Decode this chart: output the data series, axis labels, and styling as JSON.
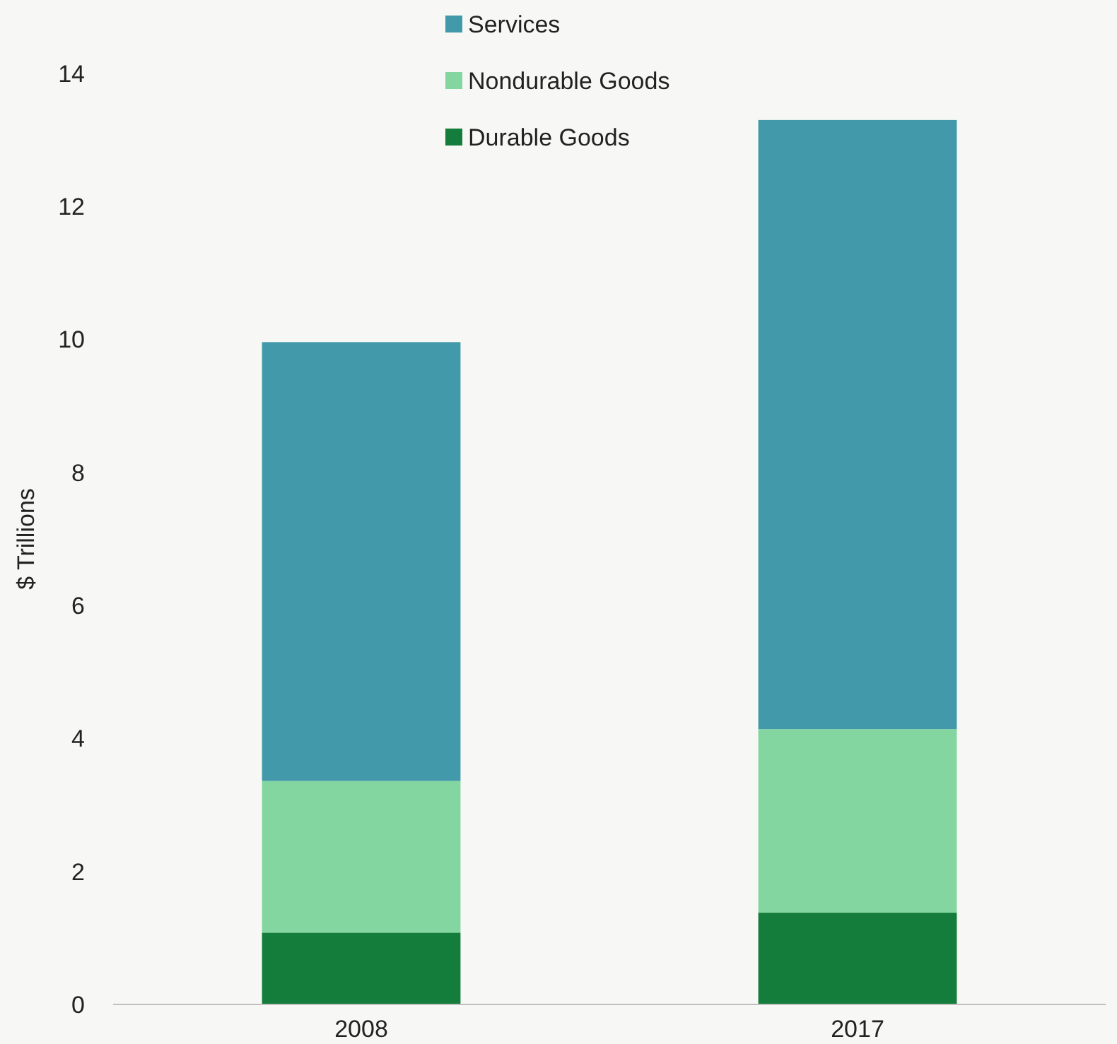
{
  "chart_data": {
    "type": "bar",
    "stacked": true,
    "ylabel": "$ Trillions",
    "categories": [
      "2008",
      "2017"
    ],
    "series": [
      {
        "name": "Durable Goods",
        "color": "#147d3c",
        "values": [
          1.08,
          1.38
        ]
      },
      {
        "name": "Nondurable Goods",
        "color": "#84d6a0",
        "values": [
          2.28,
          2.76
        ]
      },
      {
        "name": "Services",
        "color": "#4299aa",
        "values": [
          6.6,
          9.16
        ]
      }
    ],
    "ylim": [
      0,
      14
    ],
    "yticks": [
      0,
      2,
      4,
      6,
      8,
      10,
      12,
      14
    ],
    "grid": false,
    "legend": "top"
  }
}
